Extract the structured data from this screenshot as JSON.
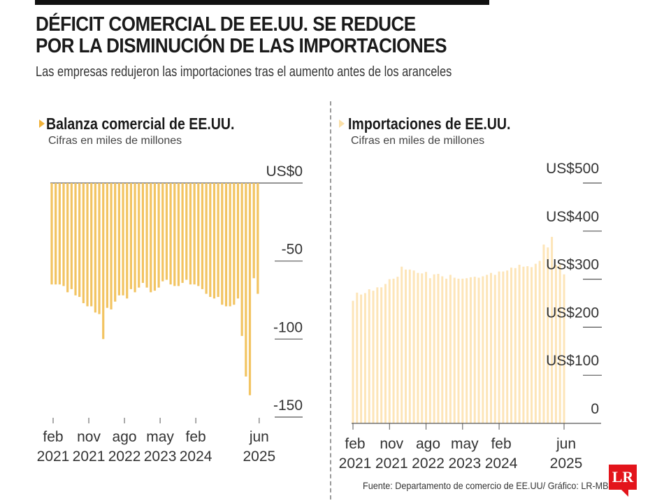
{
  "header": {
    "title_line1": "DÉFICIT COMERCIAL DE EE.UU. SE REDUCE",
    "title_line2": "POR LA DISMINUCIÓN DE LAS IMPORTACIONES",
    "subtitle": "Las empresas redujeron las importaciones tras el aumento antes de los aranceles"
  },
  "footer": {
    "source": "Fuente: Departamento de comercio de EE.UU/ Gráfico: LR-MB",
    "logo": "LR"
  },
  "colors": {
    "left_bars": "#f2c462",
    "right_bars": "#fde5b8",
    "left_arrow": "#f0b23a",
    "right_arrow": "#fbe0a8",
    "axis": "#555555"
  },
  "chart_data": [
    {
      "type": "bar",
      "title": "Balanza comercial de EE.UU.",
      "subtitle": "Cifras en miles de millones",
      "ylabel": "",
      "xlabel": "",
      "ylim": [
        -150,
        0
      ],
      "y_ticks": [
        0,
        -50,
        -100,
        -150
      ],
      "y_tick_labels": [
        "US$0",
        "-50",
        "-100",
        "-150"
      ],
      "x_tick_labels": [
        {
          "month": "feb",
          "year": "2021",
          "index": 0
        },
        {
          "month": "nov",
          "year": "2021",
          "index": 9
        },
        {
          "month": "ago",
          "year": "2022",
          "index": 18
        },
        {
          "month": "may",
          "year": "2023",
          "index": 27
        },
        {
          "month": "feb",
          "year": "2024",
          "index": 36
        },
        {
          "month": "jun",
          "year": "2025",
          "index": 52
        }
      ],
      "start": "2021-02",
      "values": [
        -65,
        -65,
        -65,
        -66,
        -70,
        -68,
        -72,
        -73,
        -77,
        -79,
        -79,
        -83,
        -84,
        -100,
        -80,
        -81,
        -76,
        -72,
        -72,
        -74,
        -68,
        -70,
        -67,
        -64,
        -67,
        -70,
        -69,
        -67,
        -63,
        -62,
        -65,
        -66,
        -66,
        -64,
        -62,
        -65,
        -65,
        -66,
        -68,
        -71,
        -73,
        -74,
        -73,
        -78,
        -79,
        -79,
        -78,
        -74,
        -98,
        -124,
        -136,
        -61,
        -71
      ]
    },
    {
      "type": "bar",
      "title": "Importaciones de EE.UU.",
      "subtitle": "Cifras en miles de millones",
      "ylabel": "",
      "xlabel": "",
      "ylim": [
        0,
        500
      ],
      "y_ticks": [
        500,
        400,
        300,
        200,
        100,
        0
      ],
      "y_tick_labels": [
        "US$500",
        "US$400",
        "US$300",
        "US$200",
        "US$100",
        "0"
      ],
      "x_tick_labels": [
        {
          "month": "feb",
          "year": "2021",
          "index": 0
        },
        {
          "month": "nov",
          "year": "2021",
          "index": 9
        },
        {
          "month": "ago",
          "year": "2022",
          "index": 18
        },
        {
          "month": "may",
          "year": "2023",
          "index": 27
        },
        {
          "month": "feb",
          "year": "2024",
          "index": 36
        },
        {
          "month": "jun",
          "year": "2025",
          "index": 52
        }
      ],
      "start": "2021-02",
      "values": [
        255,
        272,
        268,
        271,
        279,
        276,
        283,
        283,
        290,
        300,
        301,
        305,
        326,
        320,
        320,
        318,
        313,
        312,
        315,
        302,
        310,
        311,
        306,
        301,
        309,
        303,
        301,
        301,
        302,
        304,
        305,
        303,
        306,
        309,
        313,
        309,
        316,
        316,
        318,
        324,
        323,
        330,
        326,
        327,
        325,
        332,
        338,
        372,
        366,
        388,
        330,
        330,
        310
      ]
    }
  ]
}
